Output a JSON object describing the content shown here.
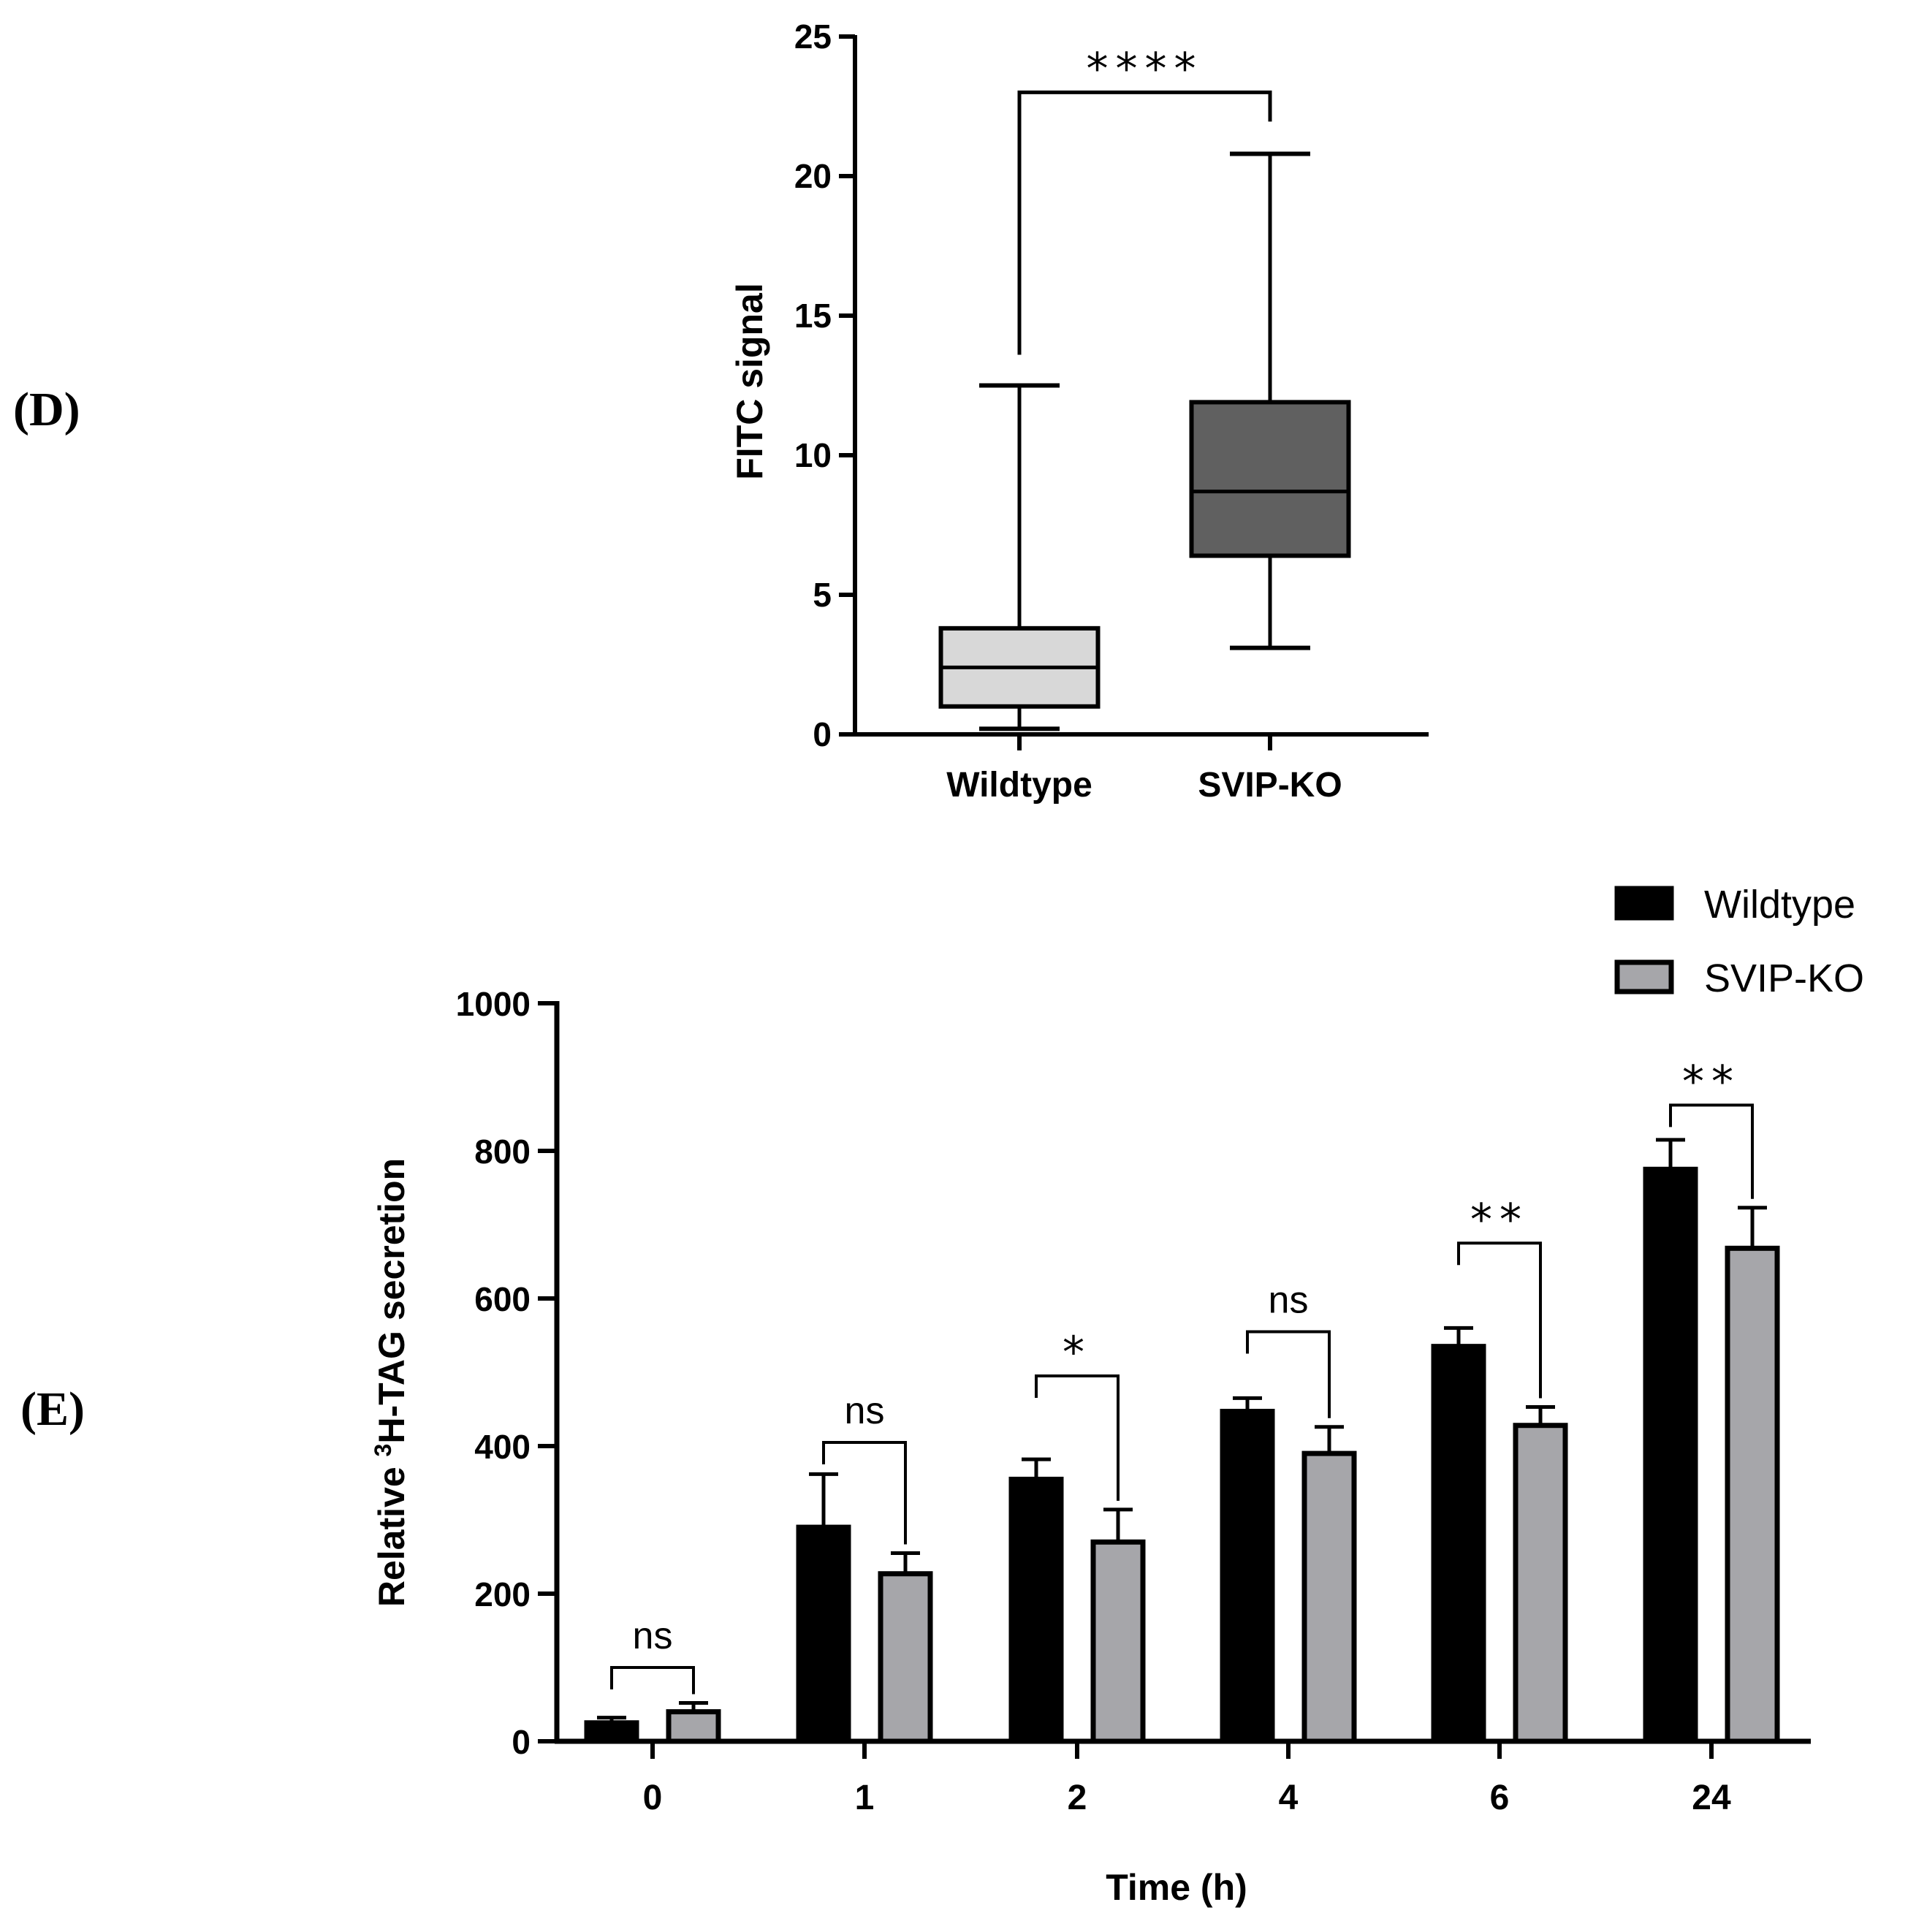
{
  "panels": {
    "d_label": "(D)",
    "e_label": "(E)"
  },
  "chart_data": [
    {
      "type": "box",
      "panel": "(D)",
      "ylabel": "FITC signal",
      "ylim": [
        0,
        25
      ],
      "yticks": [
        "0",
        "5",
        "10",
        "15",
        "20",
        "25"
      ],
      "categories": [
        "Wildtype",
        "SVIP-KO"
      ],
      "boxes": [
        {
          "name": "Wildtype",
          "min": 0.2,
          "q1": 1.0,
          "median": 2.4,
          "q3": 3.8,
          "max": 12.5,
          "color": "#d8d8d8"
        },
        {
          "name": "SVIP-KO",
          "min": 3.1,
          "q1": 6.4,
          "median": 8.7,
          "q3": 11.9,
          "max": 20.8,
          "color": "#606060"
        }
      ],
      "significance": [
        {
          "pair": [
            "Wildtype",
            "SVIP-KO"
          ],
          "label": "****",
          "bracket_y": 23.0
        }
      ]
    },
    {
      "type": "bar",
      "panel": "(E)",
      "xlabel": "Time (h)",
      "ylabel_main": "Relative ",
      "ylabel_sup": "3",
      "ylabel_rest": "H-TAG secretion",
      "ylim": [
        0,
        1000
      ],
      "yticks": [
        "0",
        "200",
        "400",
        "600",
        "800",
        "1000"
      ],
      "categories": [
        "0",
        "1",
        "2",
        "4",
        "6",
        "24"
      ],
      "series": [
        {
          "name": "Wildtype",
          "color": "#000000",
          "values": [
            25,
            290,
            355,
            447,
            535,
            775
          ],
          "errors": [
            7,
            72,
            27,
            18,
            25,
            40
          ]
        },
        {
          "name": "SVIP-KO",
          "color": "#a6a6aa",
          "values": [
            40,
            227,
            270,
            390,
            428,
            668
          ],
          "errors": [
            12,
            28,
            44,
            36,
            25,
            55
          ]
        }
      ],
      "significance": [
        {
          "category": "0",
          "label": "ns",
          "bracket_y": 100
        },
        {
          "category": "1",
          "label": "ns",
          "bracket_y": 405
        },
        {
          "category": "2",
          "label": "*",
          "bracket_y": 495
        },
        {
          "category": "4",
          "label": "ns",
          "bracket_y": 555
        },
        {
          "category": "6",
          "label": "**",
          "bracket_y": 675
        },
        {
          "category": "24",
          "label": "**",
          "bracket_y": 862
        }
      ],
      "legend": {
        "position": "top-right"
      }
    }
  ]
}
